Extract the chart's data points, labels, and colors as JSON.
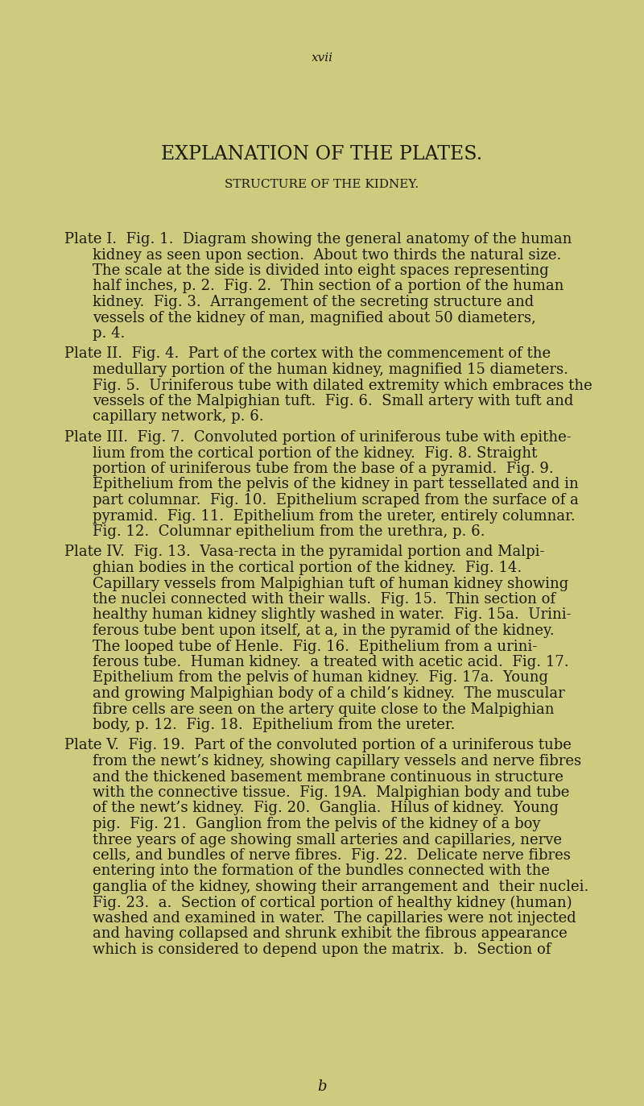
{
  "background_color": "#cdcc7e",
  "text_color": "#1a1a08",
  "page_number": "xvii",
  "main_title": "EXPLANATION OF THE PLATES.",
  "subtitle": "STRUCTURE OF THE KIDNEY.",
  "paragraphs": [
    {
      "label": "Plate I.",
      "lines": [
        "Plate I.  Fig. 1.  Diagram showing the general anatomy of the human",
        "     kidney as seen upon section.  About two thirds the natural size.",
        "     The scale at the side is divided into eight spaces representing",
        "     half inches, p. 2.  Fig. 2.  Thin section of a portion of the human",
        "     kidney.  Fig. 3.  Arrangement of the secreting structure and",
        "     vessels of the kidney of man, magnified about 50 diameters,",
        "     p. 4."
      ]
    },
    {
      "label": "Plate II.",
      "lines": [
        "Plate II.  Fig. 4.  Part of the cortex with the commencement of the",
        "     medullary portion of the human kidney, magnified 15 diameters.",
        "     Fig. 5.  Uriniferous tube with dilated extremity which embraces the",
        "     vessels of the Malpighian tuft.  Fig. 6.  Small artery with tuft and",
        "     capillary network, p. 6."
      ]
    },
    {
      "label": "Plate III.",
      "lines": [
        "Plate III.  Fig. 7.  Convoluted portion of uriniferous tube with epithe-",
        "     lium from the cortical portion of the kidney.  Fig. 8. Straight",
        "     portion of uriniferous tube from the base of a pyramid.  Fig. 9.",
        "     Epithelium from the pelvis of the kidney in part tessellated and in",
        "     part columnar.  Fig. 10.  Epithelium scraped from the surface of a",
        "     pyramid.  Fig. 11.  Epithelium from the ureter, entirely columnar.",
        "     Fig. 12.  Columnar epithelium from the urethra, p. 6."
      ]
    },
    {
      "label": "Plate IV.",
      "lines": [
        "Plate IV.  Fig. 13.  Vasa-recta in the pyramidal portion and Malpi-",
        "     ghian bodies in the cortical portion of the kidney.  Fig. 14.",
        "     Capillary vessels from Malpighian tuft of human kidney showing",
        "     the nuclei connected with their walls.  Fig. 15.  Thin section of",
        "     healthy human kidney slightly washed in water.  Fig. 15a.  Urini-",
        "     ferous tube bent upon itself, at a, in the pyramid of the kidney.",
        "     The looped tube of Henle.  Fig. 16.  Epithelium from a urini-",
        "     ferous tube.  Human kidney.  a treated with acetic acid.  Fig. 17.",
        "     Epithelium from the pelvis of human kidney.  Fig. 17a.  Young",
        "     and growing Malpighian body of a child’s kidney.  The muscular",
        "     fibre cells are seen on the artery quite close to the Malpighian",
        "     body, p. 12.  Fig. 18.  Epithelium from the ureter."
      ]
    },
    {
      "label": "Plate V.",
      "lines": [
        "Plate V.  Fig. 19.  Part of the convoluted portion of a uriniferous tube",
        "     from the newt’s kidney, showing capillary vessels and nerve fibres",
        "     and the thickened basement membrane continuous in structure",
        "     with the connective tissue.  Fig. 19A.  Malpighian body and tube",
        "     of the newt’s kidney.  Fig. 20.  Ganglia.  Hilus of kidney.  Young",
        "     pig.  Fig. 21.  Ganglion from the pelvis of the kidney of a boy",
        "     three years of age showing small arteries and capillaries, nerve",
        "     cells, and bundles of nerve fibres.  Fig. 22.  Delicate nerve fibres",
        "     entering into the formation of the bundles connected with the",
        "     ganglia of the kidney, showing their arrangement and  their nuclei.",
        "     Fig. 23.  a.  Section of cortical portion of healthy kidney (human)",
        "     washed and examined in water.  The capillaries were not injected",
        "     and having collapsed and shrunk exhibit the fibrous appearance",
        "     which is considered to depend upon the matrix.  b.  Section of"
      ]
    }
  ],
  "footer_char": "b",
  "title_fontsize": 17,
  "subtitle_fontsize": 11,
  "body_fontsize": 13,
  "page_num_fontsize": 11
}
